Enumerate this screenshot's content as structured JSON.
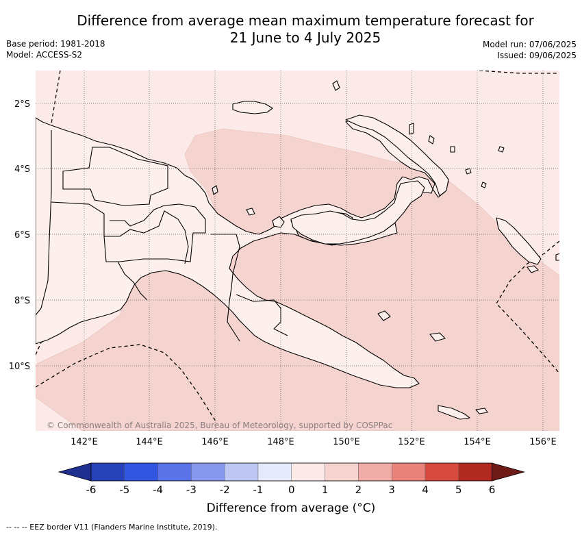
{
  "title_line1": "Difference from average mean maximum temperature forecast for",
  "title_line2": "21 June to 4 July 2025",
  "base_period": "Base period: 1981-2018",
  "model": "Model: ACCESS-S2",
  "model_run": "Model run: 07/06/2025",
  "issued": "Issued: 09/06/2025",
  "copyright": "© Commonwealth of Australia 2025, Bureau of Meteorology, supported by COSPPac",
  "footnote": "--  --  -- EEZ border V11 (Flanders Marine Institute, 2019).",
  "lat_labels": [
    "2°S",
    "4°S",
    "6°S",
    "8°S",
    "10°S"
  ],
  "lon_labels": [
    "142°E",
    "144°E",
    "146°E",
    "148°E",
    "150°E",
    "152°E",
    "154°E",
    "156°E"
  ],
  "colorbar": {
    "title": "Difference from average (°C)",
    "ticks": [
      "-6",
      "-5",
      "-4",
      "-3",
      "-2",
      "-1",
      "0",
      "1",
      "2",
      "3",
      "4",
      "5",
      "6"
    ],
    "colors": [
      "#1e2f8f",
      "#2742b8",
      "#3055e0",
      "#5a73e6",
      "#8797ec",
      "#bec6f3",
      "#e7eafa",
      "#fbeae7",
      "#f5d4d0",
      "#f0aca6",
      "#e8837b",
      "#d94a3e",
      "#b02a22",
      "#6e1a16"
    ]
  },
  "map_colors": {
    "anomaly_0_1": "#fbeae7",
    "anomaly_1_2": "#f5d4d0",
    "land_outline": "#000000"
  }
}
